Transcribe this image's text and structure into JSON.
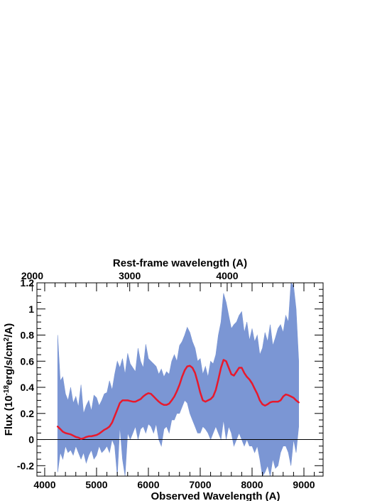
{
  "chart_data": {
    "type": "line",
    "title": "",
    "xlabel": "Observed Wavelength (A)",
    "ylabel": "Flux (10^{-18}erg/s/cm^{2}/A)",
    "ylabel_parts": {
      "prefix": "Flux (10",
      "exp1": "-18",
      "mid": "erg/s/cm",
      "exp2": "2",
      "suffix": "/A)"
    },
    "secondary_xlabel": "Rest-frame wavelength (A)",
    "xlim": [
      3850,
      9370
    ],
    "ylim": [
      -0.28,
      1.2
    ],
    "x_ticks": [
      4000,
      5000,
      6000,
      7000,
      8000,
      9000
    ],
    "y_ticks": [
      -0.2,
      0,
      0.2,
      0.4,
      0.6,
      0.8,
      1,
      1.2
    ],
    "secondary_x_ticks": [
      2000,
      3000,
      4000
    ],
    "rest_frame_factor": 1.88,
    "grid": false,
    "zero_line": 0,
    "colors": {
      "spectrum_fill": "#7b96d4",
      "smoothed_line": "#e8192c",
      "axes": "#000000"
    },
    "series": [
      {
        "style": "band",
        "x": [
          4250,
          4300,
          4350,
          4400,
          4450,
          4500,
          4550,
          4600,
          4650,
          4700,
          4750,
          4800,
          4850,
          4900,
          4950,
          5000,
          5050,
          5100,
          5150,
          5200,
          5250,
          5300,
          5350,
          5400,
          5450,
          5500,
          5550,
          5600,
          5650,
          5700,
          5750,
          5800,
          5850,
          5900,
          5950,
          6000,
          6050,
          6100,
          6150,
          6200,
          6250,
          6300,
          6350,
          6400,
          6450,
          6500,
          6550,
          6600,
          6650,
          6700,
          6750,
          6800,
          6850,
          6900,
          6950,
          7000,
          7050,
          7100,
          7150,
          7200,
          7250,
          7300,
          7350,
          7400,
          7450,
          7500,
          7550,
          7600,
          7650,
          7700,
          7750,
          7800,
          7850,
          7900,
          7950,
          8000,
          8050,
          8100,
          8150,
          8200,
          8250,
          8300,
          8350,
          8400,
          8450,
          8500,
          8550,
          8600,
          8650,
          8700,
          8750,
          8800,
          8850,
          8900
        ],
        "upper": [
          0.8,
          0.45,
          0.48,
          0.35,
          0.3,
          0.4,
          0.28,
          0.33,
          0.25,
          0.42,
          0.2,
          0.26,
          0.3,
          0.22,
          0.34,
          0.32,
          0.26,
          0.3,
          0.35,
          0.36,
          0.45,
          0.38,
          0.5,
          0.6,
          0.55,
          0.62,
          0.5,
          0.66,
          0.58,
          0.55,
          0.52,
          0.7,
          0.6,
          0.55,
          0.73,
          0.62,
          0.6,
          0.58,
          0.56,
          0.5,
          0.54,
          0.48,
          0.52,
          0.5,
          0.6,
          0.65,
          0.6,
          0.72,
          0.75,
          0.8,
          0.86,
          0.82,
          0.75,
          0.7,
          0.6,
          0.62,
          0.5,
          0.56,
          0.48,
          0.6,
          0.58,
          0.65,
          0.8,
          0.9,
          1.12,
          1.05,
          0.95,
          0.85,
          0.88,
          0.9,
          0.95,
          0.98,
          0.82,
          0.9,
          0.76,
          0.85,
          0.75,
          0.8,
          0.65,
          0.7,
          0.82,
          0.75,
          0.88,
          0.72,
          0.78,
          0.85,
          0.88,
          0.82,
          0.95,
          0.9,
          1.2,
          1.18,
          1.0,
          0.6
        ],
        "lower": [
          -0.25,
          -0.1,
          -0.15,
          -0.05,
          -0.1,
          -0.08,
          -0.12,
          -0.05,
          -0.1,
          -0.15,
          -0.1,
          -0.18,
          -0.12,
          -0.08,
          -0.15,
          -0.12,
          -0.05,
          -0.1,
          -0.08,
          -0.05,
          -0.1,
          0.0,
          -0.05,
          -0.28,
          0.1,
          -0.15,
          -0.28,
          0.05,
          0.0,
          0.05,
          0.1,
          0.0,
          0.08,
          0.1,
          0.05,
          0.12,
          0.1,
          0.05,
          0.12,
          0.0,
          -0.05,
          0.08,
          0.1,
          0.05,
          0.15,
          0.15,
          0.2,
          0.2,
          0.25,
          0.3,
          0.28,
          0.2,
          0.15,
          0.1,
          0.05,
          0.05,
          0.1,
          0.08,
          0.05,
          0.0,
          0.05,
          0.1,
          0.05,
          0.0,
          0.15,
          0.0,
          0.1,
          0.05,
          -0.05,
          0.0,
          0.05,
          0.0,
          -0.05,
          0.0,
          -0.05,
          -0.05,
          -0.1,
          -0.05,
          -0.15,
          -0.28,
          -0.25,
          -0.2,
          -0.28,
          -0.15,
          -0.22,
          -0.2,
          -0.1,
          -0.05,
          -0.05,
          -0.1,
          -0.2,
          0.0,
          -0.1,
          0.1
        ]
      },
      {
        "style": "smoothed",
        "x": [
          4250,
          4300,
          4350,
          4400,
          4450,
          4500,
          4550,
          4600,
          4650,
          4700,
          4750,
          4800,
          4850,
          4900,
          4950,
          5000,
          5050,
          5100,
          5150,
          5200,
          5250,
          5300,
          5350,
          5400,
          5450,
          5500,
          5550,
          5600,
          5650,
          5700,
          5750,
          5800,
          5850,
          5900,
          5950,
          6000,
          6050,
          6100,
          6150,
          6200,
          6250,
          6300,
          6350,
          6400,
          6450,
          6500,
          6550,
          6600,
          6650,
          6700,
          6750,
          6800,
          6850,
          6900,
          6950,
          7000,
          7050,
          7100,
          7150,
          7200,
          7250,
          7300,
          7350,
          7400,
          7450,
          7500,
          7550,
          7600,
          7650,
          7700,
          7750,
          7800,
          7850,
          7900,
          7950,
          8000,
          8050,
          8100,
          8150,
          8200,
          8250,
          8300,
          8350,
          8400,
          8450,
          8500,
          8550,
          8600,
          8650,
          8700,
          8750,
          8800,
          8850,
          8900
        ],
        "y": [
          0.1,
          0.08,
          0.06,
          0.05,
          0.045,
          0.04,
          0.03,
          0.02,
          0.015,
          0.005,
          0.01,
          0.02,
          0.025,
          0.025,
          0.03,
          0.035,
          0.045,
          0.06,
          0.075,
          0.085,
          0.1,
          0.13,
          0.18,
          0.23,
          0.28,
          0.3,
          0.3,
          0.3,
          0.295,
          0.29,
          0.29,
          0.3,
          0.31,
          0.33,
          0.345,
          0.355,
          0.35,
          0.33,
          0.31,
          0.29,
          0.275,
          0.265,
          0.265,
          0.275,
          0.3,
          0.33,
          0.37,
          0.42,
          0.48,
          0.53,
          0.56,
          0.565,
          0.55,
          0.51,
          0.44,
          0.36,
          0.3,
          0.29,
          0.3,
          0.31,
          0.33,
          0.38,
          0.46,
          0.55,
          0.61,
          0.6,
          0.55,
          0.5,
          0.49,
          0.52,
          0.55,
          0.55,
          0.51,
          0.48,
          0.46,
          0.43,
          0.39,
          0.35,
          0.3,
          0.27,
          0.26,
          0.27,
          0.285,
          0.29,
          0.29,
          0.29,
          0.3,
          0.33,
          0.345,
          0.34,
          0.33,
          0.32,
          0.3,
          0.285
        ]
      }
    ]
  }
}
